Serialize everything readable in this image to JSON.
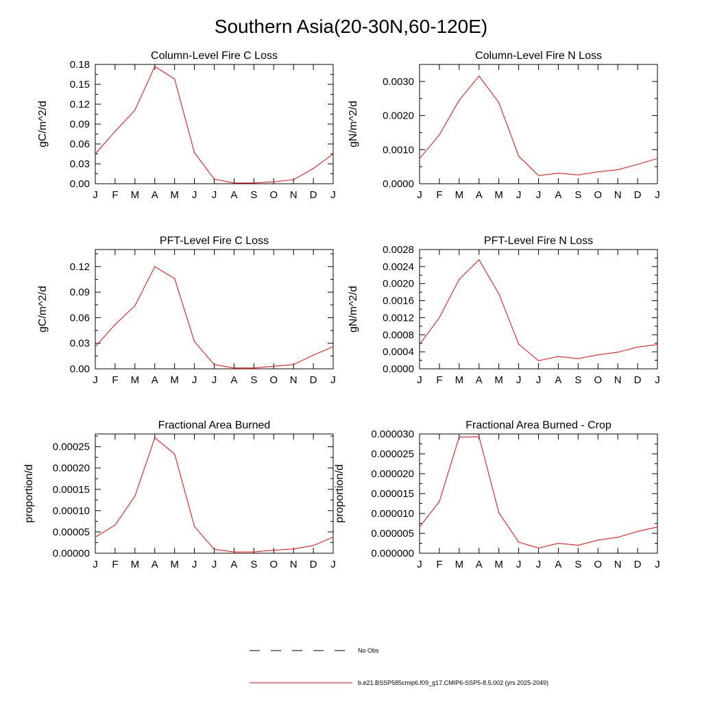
{
  "title": "Southern Asia(20-30N,60-120E)",
  "months": [
    "J",
    "F",
    "M",
    "A",
    "M",
    "J",
    "J",
    "A",
    "S",
    "O",
    "N",
    "D",
    "J"
  ],
  "line_color": "#ff0000",
  "legend": {
    "items": [
      {
        "label": "No Obs",
        "style": "dashed",
        "color": "#000000"
      },
      {
        "label": "b.e21.BSSP585cmip6.f09_g17.CMIP6-SSP5-8.5.002 (yrs 2025-2049)",
        "style": "solid",
        "color": "#ff0000"
      }
    ]
  },
  "chart_data": [
    {
      "type": "line",
      "title": "Column-Level Fire C Loss",
      "ylabel": "gC/m^2/d",
      "xlabel": "",
      "ylim": [
        0,
        0.18
      ],
      "yticks": [
        0,
        0.03,
        0.06,
        0.09,
        0.12,
        0.15,
        0.18
      ],
      "ytick_labels": [
        "0.00",
        "0.03",
        "0.06",
        "0.09",
        "0.12",
        "0.15",
        "0.18"
      ],
      "categories": [
        "J",
        "F",
        "M",
        "A",
        "M",
        "J",
        "J",
        "A",
        "S",
        "O",
        "N",
        "D",
        "J"
      ],
      "series": [
        {
          "values": [
            0.045,
            0.079,
            0.111,
            0.177,
            0.158,
            0.047,
            0.007,
            0.001,
            0.001,
            0.003,
            0.006,
            0.023,
            0.045
          ]
        }
      ]
    },
    {
      "type": "line",
      "title": "Column-Level Fire N Loss",
      "ylabel": "gN/m^2/d",
      "xlabel": "",
      "ylim": [
        0,
        0.0035
      ],
      "yticks": [
        0,
        0.001,
        0.002,
        0.003
      ],
      "ytick_labels": [
        "0.0000",
        "0.0010",
        "0.0020",
        "0.0030"
      ],
      "categories": [
        "J",
        "F",
        "M",
        "A",
        "M",
        "J",
        "J",
        "A",
        "S",
        "O",
        "N",
        "D",
        "J"
      ],
      "series": [
        {
          "values": [
            0.00074,
            0.00143,
            0.00245,
            0.00316,
            0.00238,
            0.00081,
            0.00024,
            0.00031,
            0.00026,
            0.00035,
            0.00041,
            0.00057,
            0.00074
          ]
        }
      ]
    },
    {
      "type": "line",
      "title": "PFT-Level Fire C Loss",
      "ylabel": "gC/m^2/d",
      "xlabel": "",
      "ylim": [
        0,
        0.14
      ],
      "yticks": [
        0,
        0.03,
        0.06,
        0.09,
        0.12
      ],
      "ytick_labels": [
        "0.00",
        "0.03",
        "0.06",
        "0.09",
        "0.12"
      ],
      "categories": [
        "J",
        "F",
        "M",
        "A",
        "M",
        "J",
        "J",
        "A",
        "S",
        "O",
        "N",
        "D",
        "J"
      ],
      "series": [
        {
          "values": [
            0.026,
            0.052,
            0.074,
            0.12,
            0.106,
            0.032,
            0.005,
            0.001,
            0.001,
            0.003,
            0.005,
            0.016,
            0.026
          ]
        }
      ]
    },
    {
      "type": "line",
      "title": "PFT-Level Fire N Loss",
      "ylabel": "gN/m^2/d",
      "xlabel": "",
      "ylim": [
        0,
        0.0028
      ],
      "yticks": [
        0,
        0.0004,
        0.0008,
        0.0012,
        0.0016,
        0.002,
        0.0024,
        0.0028
      ],
      "ytick_labels": [
        "0.0000",
        "0.0004",
        "0.0008",
        "0.0012",
        "0.0016",
        "0.0020",
        "0.0024",
        "0.0028"
      ],
      "categories": [
        "J",
        "F",
        "M",
        "A",
        "M",
        "J",
        "J",
        "A",
        "S",
        "O",
        "N",
        "D",
        "J"
      ],
      "series": [
        {
          "values": [
            0.00057,
            0.0012,
            0.0021,
            0.00256,
            0.00176,
            0.00058,
            0.00019,
            0.00029,
            0.00024,
            0.00033,
            0.00039,
            0.00051,
            0.00057
          ]
        }
      ]
    },
    {
      "type": "line",
      "title": "Fractional Area Burned",
      "ylabel": "proportion/d",
      "xlabel": "",
      "ylim": [
        0,
        0.00028
      ],
      "yticks": [
        0,
        5e-05,
        0.0001,
        0.00015,
        0.0002,
        0.00025
      ],
      "ytick_labels": [
        "0.00000",
        "0.00005",
        "0.00010",
        "0.00015",
        "0.00020",
        "0.00025"
      ],
      "categories": [
        "J",
        "F",
        "M",
        "A",
        "M",
        "J",
        "J",
        "A",
        "S",
        "O",
        "N",
        "D",
        "J"
      ],
      "series": [
        {
          "values": [
            3.8e-05,
            6.6e-05,
            0.000134,
            0.000271,
            0.000233,
            6.3e-05,
            9e-06,
            3e-06,
            3e-06,
            7e-06,
            1e-05,
            1.8e-05,
            3.8e-05
          ]
        }
      ]
    },
    {
      "type": "line",
      "title": "Fractional Area Burned - Crop",
      "ylabel": "proportion/d",
      "xlabel": "",
      "ylim": [
        0,
        3e-05
      ],
      "yticks": [
        0,
        5e-06,
        1e-05,
        1.5e-05,
        2e-05,
        2.5e-05,
        3e-05
      ],
      "ytick_labels": [
        "0.000000",
        "0.000005",
        "0.000010",
        "0.000015",
        "0.000020",
        "0.000025",
        "0.000030"
      ],
      "categories": [
        "J",
        "F",
        "M",
        "A",
        "M",
        "J",
        "J",
        "A",
        "S",
        "O",
        "N",
        "D",
        "J"
      ],
      "series": [
        {
          "values": [
            6.6e-06,
            1.3e-05,
            2.92e-05,
            2.93e-05,
            1.02e-05,
            2.8e-06,
            1.3e-06,
            2.5e-06,
            2e-06,
            3.3e-06,
            4e-06,
            5.5e-06,
            6.6e-06
          ]
        }
      ]
    }
  ]
}
